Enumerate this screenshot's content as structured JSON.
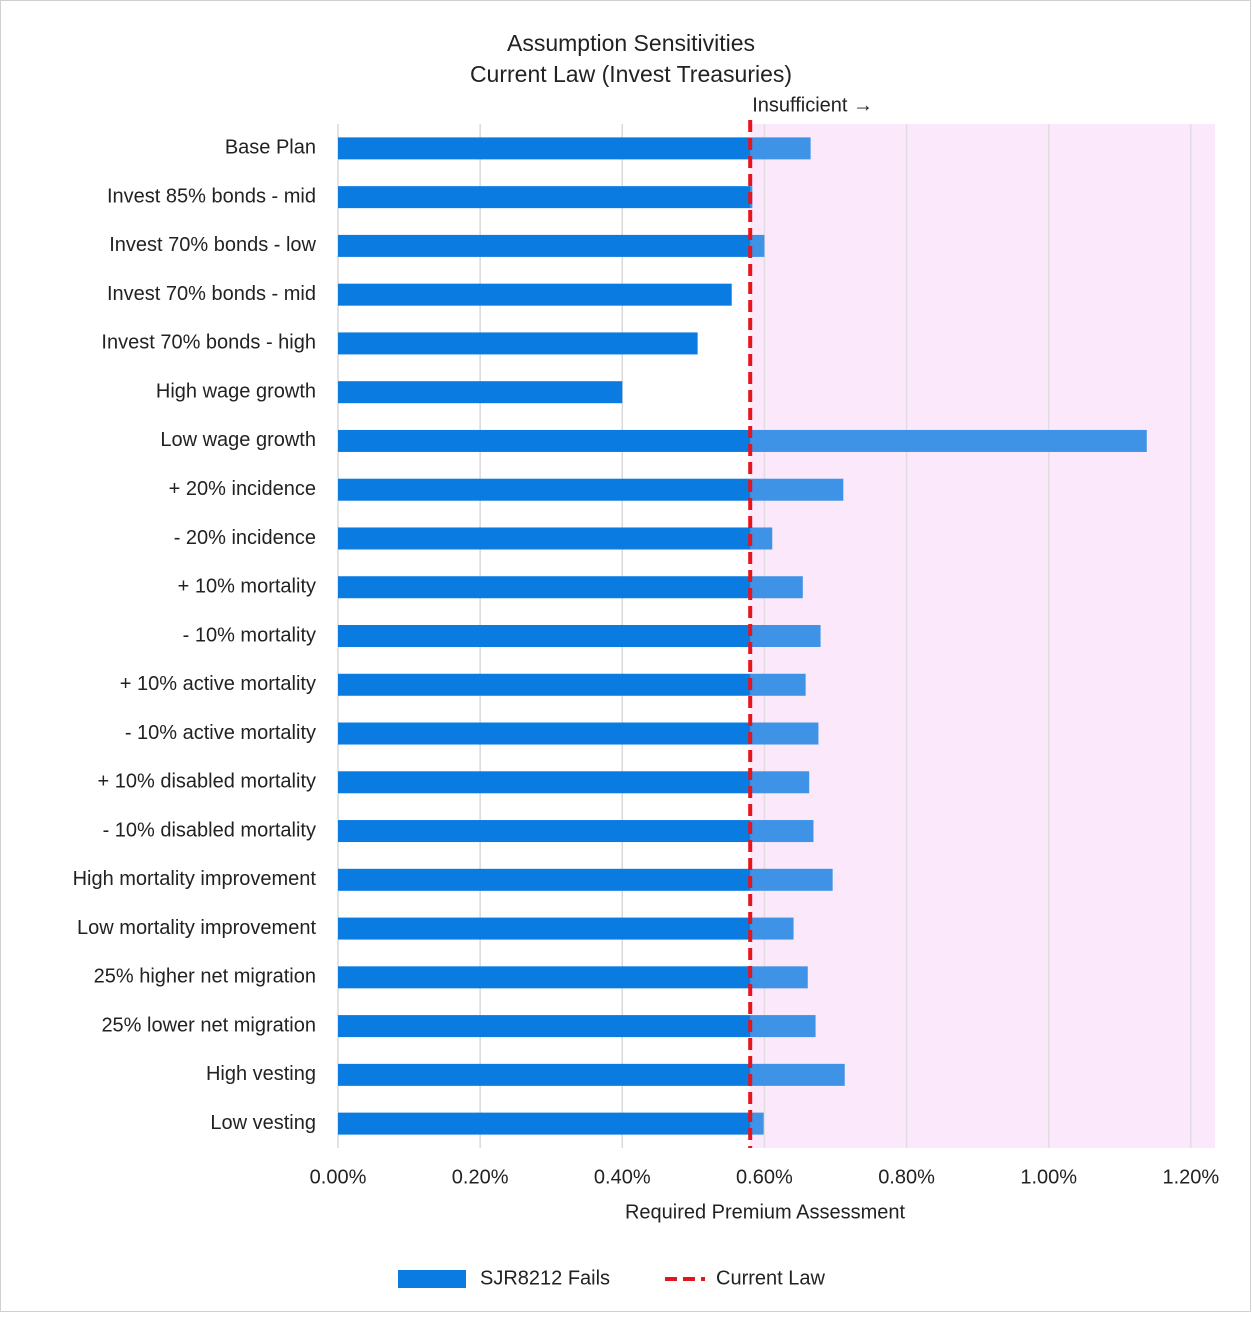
{
  "chart_data": {
    "type": "hbar",
    "title": "Assumption Sensitivities",
    "subtitle": "Current Law (Invest Treasuries)",
    "annotation": "Insufficient →",
    "x_label": "Required Premium Assessment",
    "categories": [
      "Base Plan",
      "Invest 85% bonds - mid",
      "Invest 70% bonds - low",
      "Invest 70% bonds - mid",
      "Invest 70% bonds - high",
      "High wage growth",
      "Low wage growth",
      "+ 20% incidence",
      "- 20% incidence",
      "+ 10% mortality",
      "- 10% mortality",
      "+ 10% active mortality",
      "- 10% active mortality",
      "+ 10% disabled mortality",
      "- 10% disabled mortality",
      "High mortality improvement",
      "Low mortality improvement",
      "25% higher net migration",
      "25% lower net migration",
      "High vesting",
      "Low vesting"
    ],
    "series": [
      {
        "name": "SJR8212 Fails",
        "color": "#0a7be0",
        "values": [
          0.665,
          0.583,
          0.6,
          0.554,
          0.506,
          0.4,
          1.138,
          0.711,
          0.611,
          0.654,
          0.679,
          0.658,
          0.676,
          0.663,
          0.669,
          0.696,
          0.641,
          0.661,
          0.672,
          0.713,
          0.599
        ]
      }
    ],
    "reference_line": {
      "name": "Current Law",
      "value": 0.58,
      "color": "#e8141c"
    },
    "shade_color": "#fce8fc",
    "xlim": [
      0,
      1.234
    ],
    "xticks": [
      {
        "value": 0,
        "label": "0.00%"
      },
      {
        "value": 0.2,
        "label": "0.20%"
      },
      {
        "value": 0.4,
        "label": "0.40%"
      },
      {
        "value": 0.6,
        "label": "0.60%"
      },
      {
        "value": 0.8,
        "label": "0.80%"
      },
      {
        "value": 1.0,
        "label": "1.00%"
      },
      {
        "value": 1.2,
        "label": "1.20%"
      }
    ],
    "grid": true
  }
}
